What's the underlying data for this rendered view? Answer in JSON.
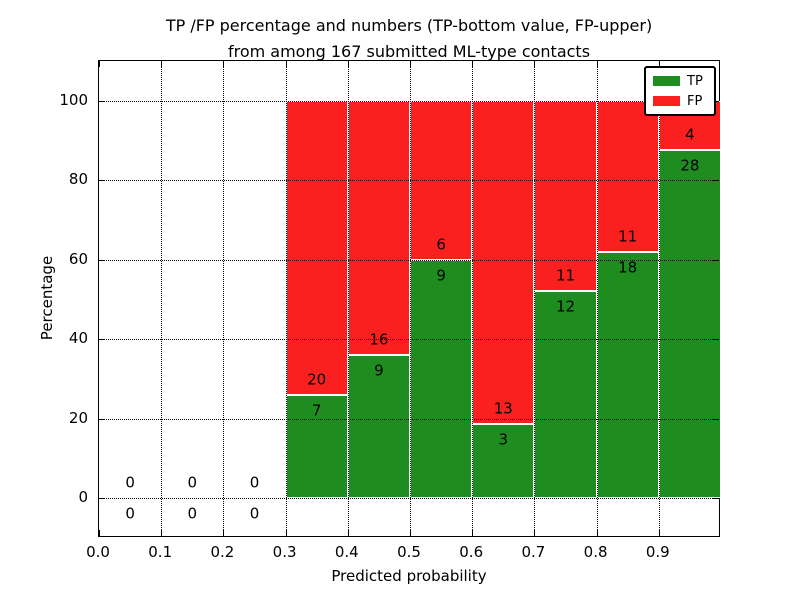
{
  "chart_data": {
    "type": "bar",
    "stacked": true,
    "units": "percent",
    "title_lines": [
      "TP /FP percentage and numbers (TP-bottom value, FP-upper)",
      "from among 167 submitted ML-type contacts"
    ],
    "total_submitted_contacts": 167,
    "xlabel": "Predicted probability",
    "ylabel": "Percentage",
    "xlim": [
      0.0,
      1.0
    ],
    "ylim": [
      -10,
      110
    ],
    "xtick_values": [
      0.0,
      0.1,
      0.2,
      0.3,
      0.4,
      0.5,
      0.6,
      0.7,
      0.8,
      0.9
    ],
    "xtick_labels": [
      "0.0",
      "0.1",
      "0.2",
      "0.3",
      "0.4",
      "0.5",
      "0.6",
      "0.7",
      "0.8",
      "0.9"
    ],
    "ytick_values": [
      0,
      20,
      40,
      60,
      80,
      100
    ],
    "ytick_labels": [
      "0",
      "20",
      "40",
      "60",
      "80",
      "100"
    ],
    "bar_width": 0.1,
    "grid": true,
    "legend": {
      "position": "upper right",
      "entries": [
        {
          "label": "TP",
          "color": "#1e8c1e"
        },
        {
          "label": "FP",
          "color": "#fa2020"
        }
      ]
    },
    "series": [
      {
        "name": "TP",
        "color": "#1e8c1e",
        "counts": [
          0,
          0,
          0,
          7,
          9,
          9,
          3,
          12,
          18,
          28
        ]
      },
      {
        "name": "FP",
        "color": "#fa2020",
        "counts": [
          0,
          0,
          0,
          20,
          16,
          6,
          13,
          11,
          11,
          4
        ]
      }
    ],
    "bars": [
      {
        "x_start": 0.0,
        "tp": 0,
        "fp": 0,
        "tp_pct": 0.0
      },
      {
        "x_start": 0.1,
        "tp": 0,
        "fp": 0,
        "tp_pct": 0.0
      },
      {
        "x_start": 0.2,
        "tp": 0,
        "fp": 0,
        "tp_pct": 0.0
      },
      {
        "x_start": 0.3,
        "tp": 7,
        "fp": 20,
        "tp_pct": 25.9
      },
      {
        "x_start": 0.4,
        "tp": 9,
        "fp": 16,
        "tp_pct": 36.0
      },
      {
        "x_start": 0.5,
        "tp": 9,
        "fp": 6,
        "tp_pct": 60.0
      },
      {
        "x_start": 0.6,
        "tp": 3,
        "fp": 13,
        "tp_pct": 18.8
      },
      {
        "x_start": 0.7,
        "tp": 12,
        "fp": 11,
        "tp_pct": 52.2
      },
      {
        "x_start": 0.8,
        "tp": 18,
        "fp": 11,
        "tp_pct": 62.1
      },
      {
        "x_start": 0.9,
        "tp": 28,
        "fp": 4,
        "tp_pct": 87.5
      }
    ]
  }
}
